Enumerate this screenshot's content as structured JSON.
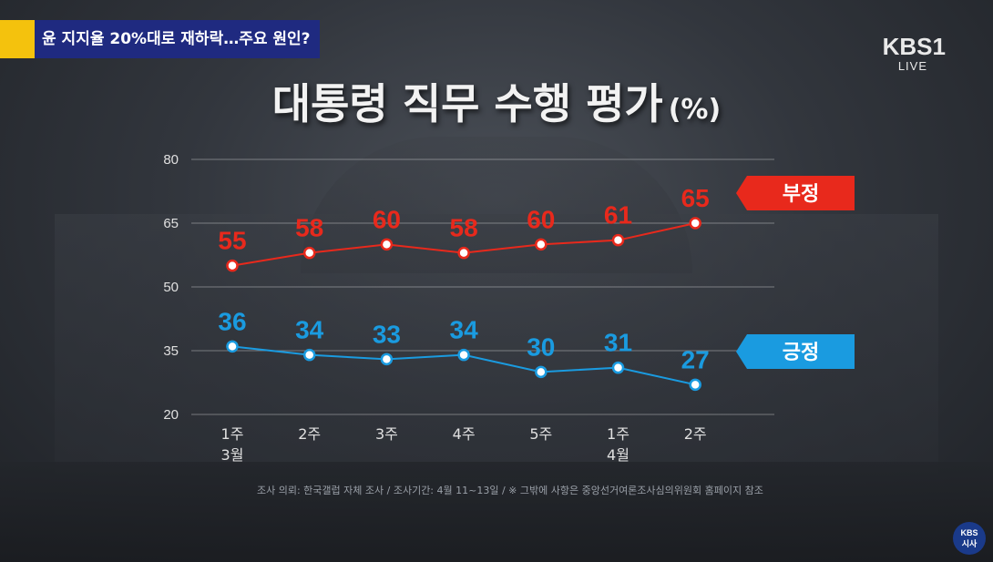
{
  "headline": "윤 지지율 20%대로 재하락…주요 원인?",
  "logo": "KBS",
  "logo_channel": "1",
  "logo_live": "LIVE",
  "title": "대통령 직무 수행 평가",
  "title_unit": "(%)",
  "footnote": "조사 의뢰: 한국갤럽 자체 조사 / 조사기간: 4월 11~13일 / ※ 그밖에 사항은 중앙선거여론조사심의위원회 홈페이지 참조",
  "corner_badge": [
    "KBS",
    "시사"
  ],
  "colors": {
    "negative": "#e8291c",
    "positive": "#1a9be0",
    "headline_bar": "#1f2a80",
    "accent": "#f4c20d"
  },
  "chart_data": {
    "type": "line",
    "categories": [
      "1주",
      "2주",
      "3주",
      "4주",
      "5주",
      "1주",
      "2주"
    ],
    "month_labels": [
      {
        "index": 0,
        "label": "3월"
      },
      {
        "index": 5,
        "label": "4월"
      }
    ],
    "ylim": [
      20,
      80
    ],
    "yticks": [
      20,
      35,
      50,
      65,
      80
    ],
    "grid": true,
    "series": [
      {
        "name": "부정",
        "color": "#e8291c",
        "values": [
          55,
          58,
          60,
          58,
          60,
          61,
          65
        ]
      },
      {
        "name": "긍정",
        "color": "#1a9be0",
        "values": [
          36,
          34,
          33,
          34,
          30,
          31,
          27
        ]
      }
    ]
  }
}
